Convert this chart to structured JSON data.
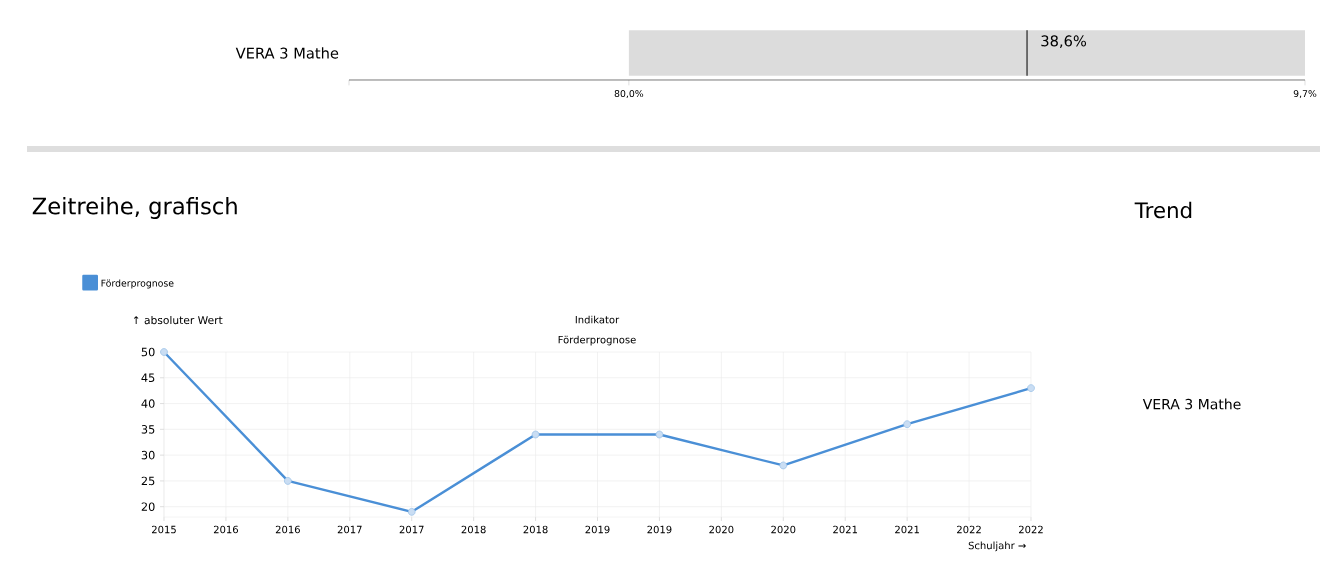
{
  "chart_data": [
    {
      "type": "bar",
      "orientation": "horizontal",
      "categories": [
        "VERA 3 Mathe"
      ],
      "values": [
        -70.3
      ],
      "base": [
        80
      ],
      "color": "#dcdcdc",
      "xlim": [
        109.1,
        9.7
      ],
      "xticks": [
        {
          "value": 109.1,
          "label": null
        },
        {
          "value": 80,
          "label": "80,0%"
        },
        {
          "value": 9.7,
          "label": "9,7%"
        }
      ],
      "ref_lines": [
        {
          "axis": "x",
          "value": 38.6,
          "label": "38,6%",
          "color": "#505050"
        }
      ]
    },
    {
      "type": "line",
      "title": "Zeitreihe, grafisch",
      "subtitle": "Indikator Förderprognose",
      "xlabel": "Schuljahr →",
      "ylabel": "↑ absoluter Wert",
      "x": [
        2015,
        2016,
        2017,
        2018,
        2019,
        2020,
        2021,
        2022
      ],
      "series": [
        {
          "name": "Förderprognose",
          "color": "#4a8fd6",
          "values": [
            50,
            25,
            19,
            34,
            34,
            28,
            36,
            43
          ]
        }
      ],
      "xlim": [
        2015,
        2022
      ],
      "xticks": [
        2015,
        {
          "value": 2015.5,
          "label": "2016"
        },
        2016,
        {
          "value": 2016.5,
          "label": "2017"
        },
        2017,
        {
          "value": 2017.5,
          "label": "2018"
        },
        2018,
        {
          "value": 2018.5,
          "label": "2019"
        },
        2019,
        {
          "value": 2019.5,
          "label": "2020"
        },
        2020,
        {
          "value": 2020.5,
          "label": "2021"
        },
        2021,
        {
          "value": 2021.5,
          "label": "2022"
        },
        2022
      ],
      "ylim": [
        18,
        50
      ],
      "yticks": [
        20,
        25,
        30,
        35,
        40,
        45,
        50
      ],
      "grid": true,
      "legend": "top left",
      "marker": "circle",
      "line_style": "solid"
    },
    {
      "type": "other",
      "title": "Trend",
      "annotations": [
        "VERA 3 Mathe"
      ]
    }
  ]
}
